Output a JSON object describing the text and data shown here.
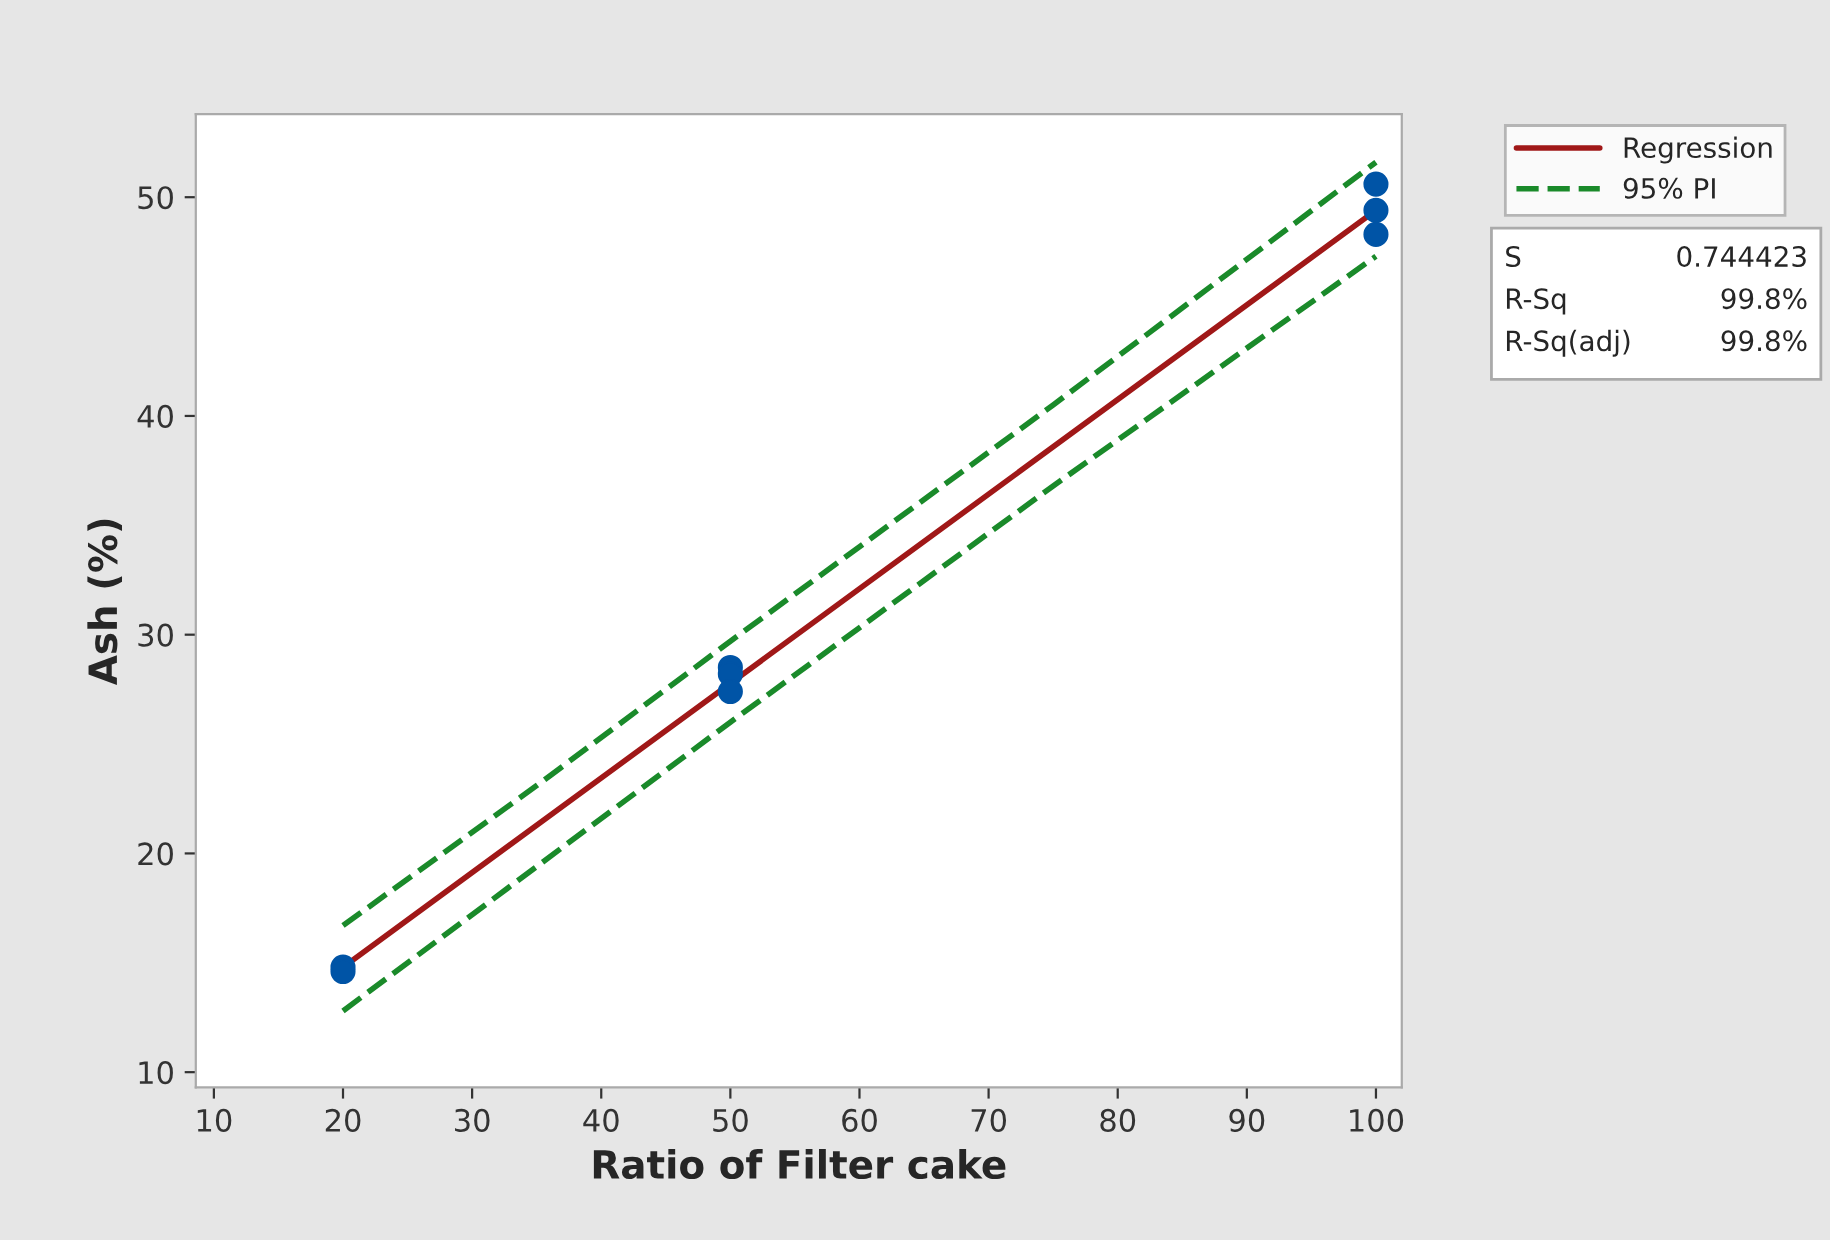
{
  "chart_data": {
    "type": "scatter",
    "xlabel": "Ratio of Filter cake",
    "ylabel": "Ash (%)",
    "series": [
      {
        "color": "#0054a6",
        "x": [
          20,
          20,
          50,
          50,
          50,
          100,
          100,
          100
        ],
        "values": [
          14.8,
          14.6,
          28.5,
          28.2,
          27.4,
          50.6,
          49.4,
          48.3
        ],
        "marker": "circle"
      },
      {
        "type": "line",
        "name": "Regression",
        "color": "#a01818",
        "x": [
          20,
          100
        ],
        "values": [
          14.8,
          49.4
        ],
        "line_style": "solid"
      },
      {
        "type": "line",
        "name": "95% PI",
        "color": "#1a8a2a",
        "x": [
          20,
          35,
          50,
          75,
          100
        ],
        "values": [
          16.7,
          23.1,
          29.7,
          40.5,
          51.6
        ],
        "line_style": "dashed"
      },
      {
        "type": "line",
        "color": "#1a8a2a",
        "x": [
          20,
          35,
          50,
          75,
          100
        ],
        "values": [
          12.8,
          19.4,
          26.0,
          36.8,
          47.3
        ],
        "line_style": "dashed"
      }
    ],
    "xlim": [
      8.6,
      102
    ],
    "ylim": [
      9.3,
      53.8
    ],
    "xticks": [
      10,
      20,
      30,
      40,
      50,
      60,
      70,
      80,
      90,
      100
    ],
    "yticks": [
      10,
      20,
      30,
      40,
      50
    ],
    "grid": false,
    "legend": "top right",
    "annotations": [
      "S",
      "0.744423",
      "R-Sq",
      "99.8%",
      "R-Sq(adj)",
      "99.8%"
    ]
  }
}
